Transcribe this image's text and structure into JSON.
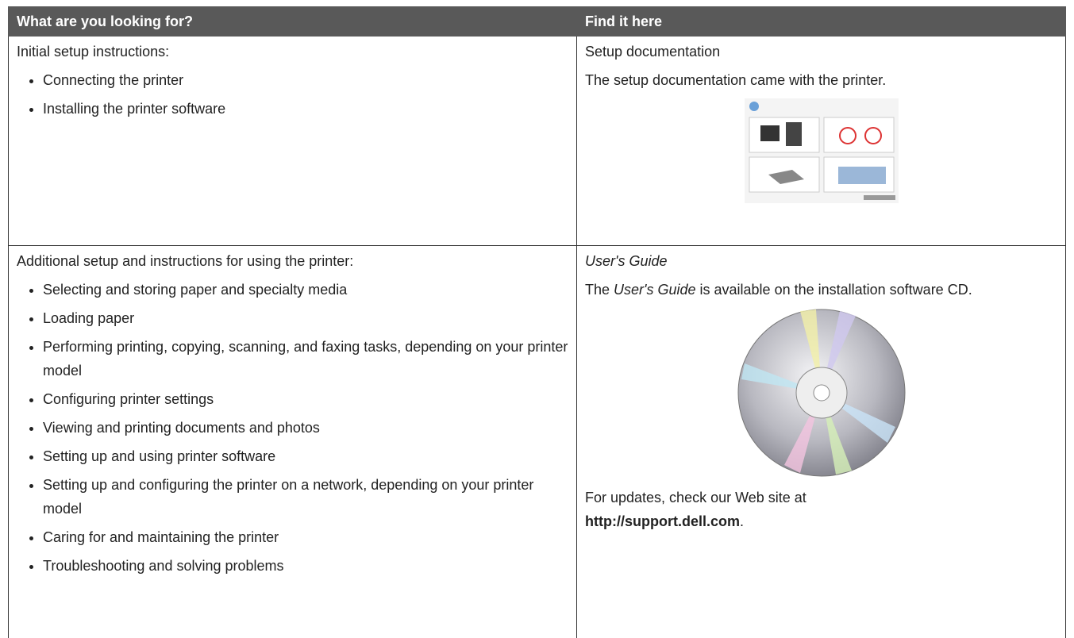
{
  "table": {
    "headers": [
      "What are you looking for?",
      "Find it here"
    ],
    "rows": [
      {
        "left": {
          "intro": "Initial setup instructions:",
          "bullets": [
            "Connecting the printer",
            "Installing the printer software"
          ]
        },
        "right": {
          "paragraphs": [
            [
              {
                "text": "Setup documentation"
              }
            ],
            [
              {
                "text": "The setup documentation came with the printer."
              }
            ]
          ]
        }
      },
      {
        "left": {
          "intro": "Additional setup and instructions for using the printer:",
          "bullets": [
            "Selecting and storing paper and specialty media",
            "Loading paper",
            "Performing printing, copying, scanning, and faxing tasks, depending on your printer model",
            "Configuring printer settings",
            "Viewing and printing documents and photos",
            "Setting up and using printer software",
            "Setting up and configuring the printer on a network, depending on your printer model",
            "Caring for and maintaining the printer",
            "Troubleshooting and solving problems"
          ]
        },
        "right": {
          "paragraphs": [
            [
              {
                "text": "User's Guide",
                "style": "italic"
              }
            ],
            [
              {
                "text": "The "
              },
              {
                "text": "User's Guide",
                "style": "italic"
              },
              {
                "text": " is available on the installation software CD."
              }
            ]
          ],
          "after_image": [
            [
              {
                "text": "For updates, check our Web site at "
              },
              {
                "text": "http://support.dell.com",
                "style": "bold"
              },
              {
                "text": "."
              }
            ]
          ]
        }
      }
    ]
  }
}
